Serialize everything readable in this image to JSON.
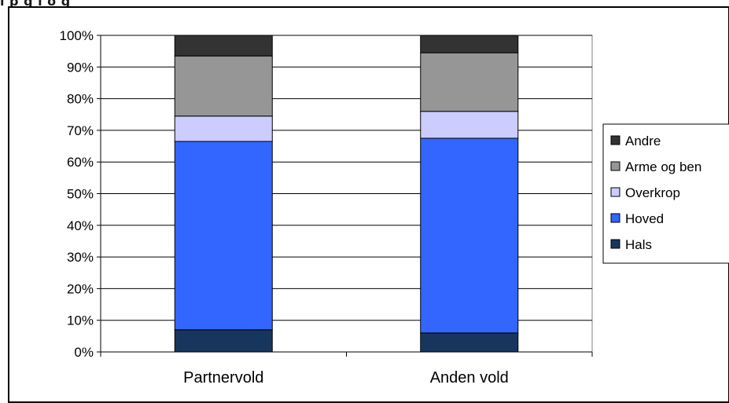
{
  "header_fragment": "l p g l o g",
  "chart_data": {
    "type": "bar",
    "stacked": true,
    "percent": true,
    "categories": [
      "Partnervold",
      "Anden vold"
    ],
    "series": [
      {
        "name": "Hals",
        "color": "#17365d",
        "values": [
          7,
          6
        ]
      },
      {
        "name": "Hoved",
        "color": "#3366ff",
        "values": [
          59.5,
          61.5
        ]
      },
      {
        "name": "Overkrop",
        "color": "#ccccff",
        "values": [
          8,
          8.5
        ]
      },
      {
        "name": "Arme og ben",
        "color": "#969696",
        "values": [
          19,
          18.5
        ]
      },
      {
        "name": "Andre",
        "color": "#333333",
        "values": [
          6.5,
          5.5
        ]
      }
    ],
    "y_ticks": [
      "0%",
      "10%",
      "20%",
      "30%",
      "40%",
      "50%",
      "60%",
      "70%",
      "80%",
      "90%",
      "100%"
    ],
    "ylim": [
      0,
      100
    ],
    "grid": true,
    "legend_position": "right",
    "legend_order": [
      "Andre",
      "Arme og ben",
      "Overkrop",
      "Hoved",
      "Hals"
    ]
  }
}
